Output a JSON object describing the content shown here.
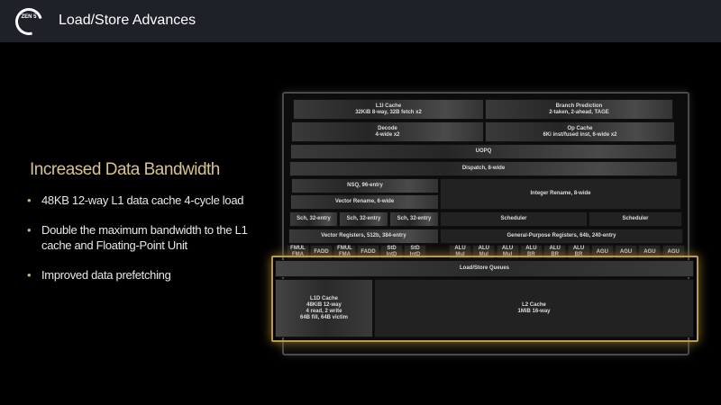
{
  "header": {
    "title": "Load/Store Advances",
    "logo_text": "ZEN 5"
  },
  "left": {
    "heading": "Increased Data Bandwidth",
    "bullets": [
      "48KB 12-way L1 data cache 4-cycle load",
      "Double the maximum bandwidth to the L1 cache and Floating-Point Unit",
      "Improved data prefetching"
    ]
  },
  "colors": {
    "accent": "#d8c38e",
    "highlight": "#b99a55",
    "header_bg": "#1f2128"
  },
  "diagram": {
    "l1i": "L1I Cache\n32KiB 8-way, 32B fetch x2",
    "bp": "Branch Prediction\n2-taken, 2-ahead, TAGE",
    "decode": "Decode\n4-wide x2",
    "opcache": "Op Cache\n6Ki inst/fused inst, 6-wide x2",
    "uopq": "UOPQ",
    "dispatch": "Dispatch, 8-wide",
    "nsq": "NSQ, 96-entry",
    "vrename": "Vector Rename, 6-wide",
    "irename": "Integer Rename, 8-wide",
    "sch": [
      "Sch, 32-entry",
      "Sch, 32-entry",
      "Sch, 32-entry"
    ],
    "scheduler": [
      "Scheduler",
      "Scheduler"
    ],
    "vregs": "Vector Registers, 512b, 384-entry",
    "gprs": "General-Purpose Registers, 64b, 240-entry",
    "fp_units": [
      "FMUL\nFMA",
      "FADD",
      "FMUL\nFMA",
      "FADD",
      "StD\nIntD",
      "StD\nIntD"
    ],
    "int_units": [
      "ALU\nMul",
      "ALU\nMul",
      "ALU\nMul",
      "ALU\nBR",
      "ALU\nBR",
      "ALU\nBR",
      "AGU",
      "AGU",
      "AGU",
      "AGU"
    ],
    "lsq": "Load/Store Queues",
    "l1d": "L1D Cache\n48KiB 12-way\n4 read, 2 write\n64B fill, 64B victim",
    "l2": "L2 Cache\n1MiB 16-way"
  }
}
